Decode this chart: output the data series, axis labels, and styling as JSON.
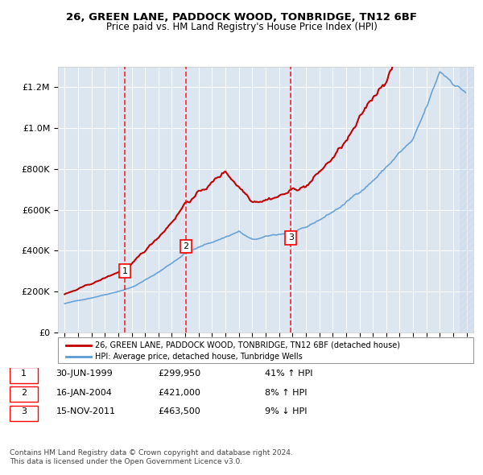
{
  "title1": "26, GREEN LANE, PADDOCK WOOD, TONBRIDGE, TN12 6BF",
  "title2": "Price paid vs. HM Land Registry's House Price Index (HPI)",
  "sale_dates_num": [
    1999.496,
    2004.046,
    2011.877
  ],
  "sale_prices": [
    299950,
    421000,
    463500
  ],
  "sale_labels": [
    "1",
    "2",
    "3"
  ],
  "sale_info": [
    {
      "num": "1",
      "date": "30-JUN-1999",
      "price": "£299,950",
      "pct": "41%",
      "dir": "↑",
      "rel": "HPI"
    },
    {
      "num": "2",
      "date": "16-JAN-2004",
      "price": "£421,000",
      "pct": "8%",
      "dir": "↑",
      "rel": "HPI"
    },
    {
      "num": "3",
      "date": "15-NOV-2011",
      "price": "£463,500",
      "pct": "9%",
      "dir": "↓",
      "rel": "HPI"
    }
  ],
  "legend_line1": "26, GREEN LANE, PADDOCK WOOD, TONBRIDGE, TN12 6BF (detached house)",
  "legend_line2": "HPI: Average price, detached house, Tunbridge Wells",
  "footer1": "Contains HM Land Registry data © Crown copyright and database right 2024.",
  "footer2": "This data is licensed under the Open Government Licence v3.0.",
  "hpi_color": "#5b9bd5",
  "price_color": "#c00000",
  "vline_color": "#ff0000",
  "bg_color": "#dce6f1",
  "hatch_color": "#c5d5e8",
  "ylim_max": 1300000,
  "ylim_min": 0,
  "xlim_min": 1994.5,
  "xlim_max": 2025.5
}
